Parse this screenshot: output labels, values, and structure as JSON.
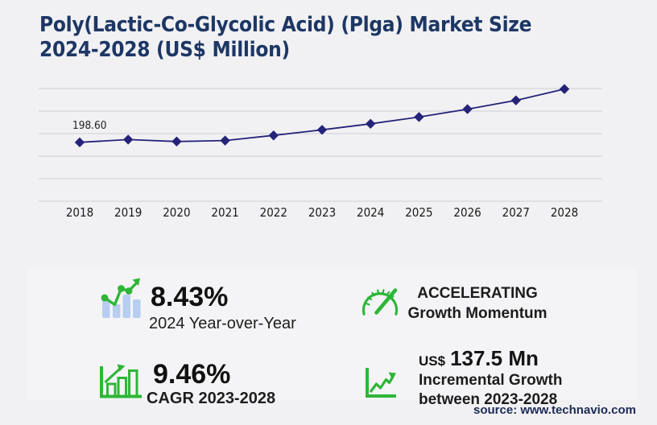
{
  "title": {
    "line1": "Poly(Lactic-Co-Glycolic Acid) (Plga) Market Size",
    "line2": "2024-2028 (US$ Million)"
  },
  "chart_data": {
    "type": "line",
    "title": "Poly(Lactic-Co-Glycolic Acid) (Plga) Market Size 2024-2028 (US$ Million)",
    "categories": [
      "2018",
      "2019",
      "2020",
      "2021",
      "2022",
      "2023",
      "2024",
      "2025",
      "2026",
      "2027",
      "2028"
    ],
    "values": [
      198.6,
      207.9,
      201.4,
      204.6,
      221.9,
      240.8,
      261.1,
      284.0,
      310.6,
      340.1,
      378.3
    ],
    "xlabel": "",
    "ylabel": "",
    "ylim": [
      0,
      380
    ],
    "grid": "horizontal-only",
    "legend": "none",
    "marker": "diamond",
    "series_color": "#252379",
    "gridline_color": "#cfcfd6",
    "annotations": [
      {
        "category": "2018",
        "text": "198.60"
      }
    ]
  },
  "stats": {
    "yoy": {
      "icon": "bar-chart-trend-icon",
      "value": "8.43%",
      "label": "2024 Year-over-Year"
    },
    "momentum": {
      "icon": "speedometer-icon",
      "line1": "ACCELERATING",
      "line2": "Growth Momentum"
    },
    "cagr": {
      "icon": "bar-chart-arrow-icon",
      "value": "9.46%",
      "label": "CAGR 2023-2028"
    },
    "incremental": {
      "icon": "zigzag-arrow-icon",
      "currency": "US$",
      "value": "137.5 Mn",
      "label_line1": "Incremental Growth",
      "label_line2": "between 2023-2028"
    }
  },
  "source": "source: www.technavio.com",
  "colors": {
    "accent_green": "#2eb637",
    "bar_blue": "#b7cdf1",
    "line_navy": "#252379",
    "title_navy": "#1d3765",
    "source_navy": "#1b2a55",
    "page_bg": "#f1f1f3",
    "panel_bg": "#f4f4f6"
  }
}
